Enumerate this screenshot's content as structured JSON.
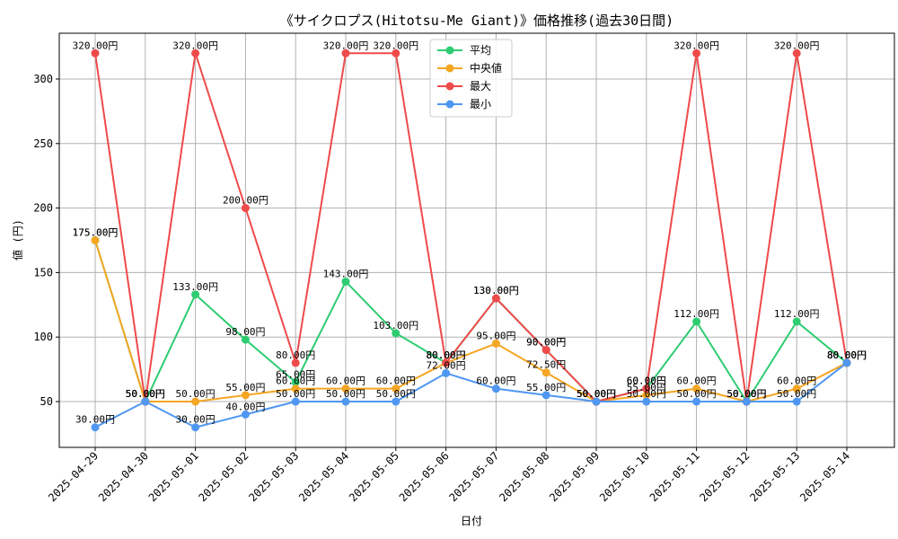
{
  "chart_data": {
    "type": "line",
    "title": "《サイクロプス(Hitotsu-Me Giant)》価格推移(過去30日間)",
    "xlabel": "日付",
    "ylabel": "値 (円)",
    "ylim": [
      14.5,
      335.5
    ],
    "yticks": [
      50,
      100,
      150,
      200,
      250,
      300
    ],
    "grid": true,
    "legend_position": "top-center",
    "value_suffix": "円",
    "categories": [
      "2025-04-29",
      "2025-04-30",
      "2025-05-01",
      "2025-05-02",
      "2025-05-03",
      "2025-05-04",
      "2025-05-05",
      "2025-05-06",
      "2025-05-07",
      "2025-05-08",
      "2025-05-09",
      "2025-05-10",
      "2025-05-11",
      "2025-05-12",
      "2025-05-13",
      "2025-05-14"
    ],
    "series": [
      {
        "name": "平均",
        "color": "#2ecc71",
        "values": [
          175,
          50,
          133,
          98,
          65,
          143,
          103,
          80,
          130,
          90,
          50,
          60,
          112,
          50,
          112,
          80
        ]
      },
      {
        "name": "中央値",
        "color": "#f5a623",
        "values": [
          175,
          50,
          50,
          55,
          60,
          60,
          60,
          80,
          95,
          72.5,
          50,
          55,
          60,
          50,
          60,
          80
        ]
      },
      {
        "name": "最大",
        "color": "#ef4a4a",
        "values": [
          320,
          50,
          320,
          200,
          80,
          320,
          320,
          80,
          130,
          90,
          50,
          60,
          320,
          50,
          320,
          80
        ]
      },
      {
        "name": "最小",
        "color": "#4f97f0",
        "values": [
          30,
          50,
          30,
          40,
          50,
          50,
          50,
          72,
          60,
          55,
          50,
          50,
          50,
          50,
          50,
          80
        ]
      }
    ]
  }
}
